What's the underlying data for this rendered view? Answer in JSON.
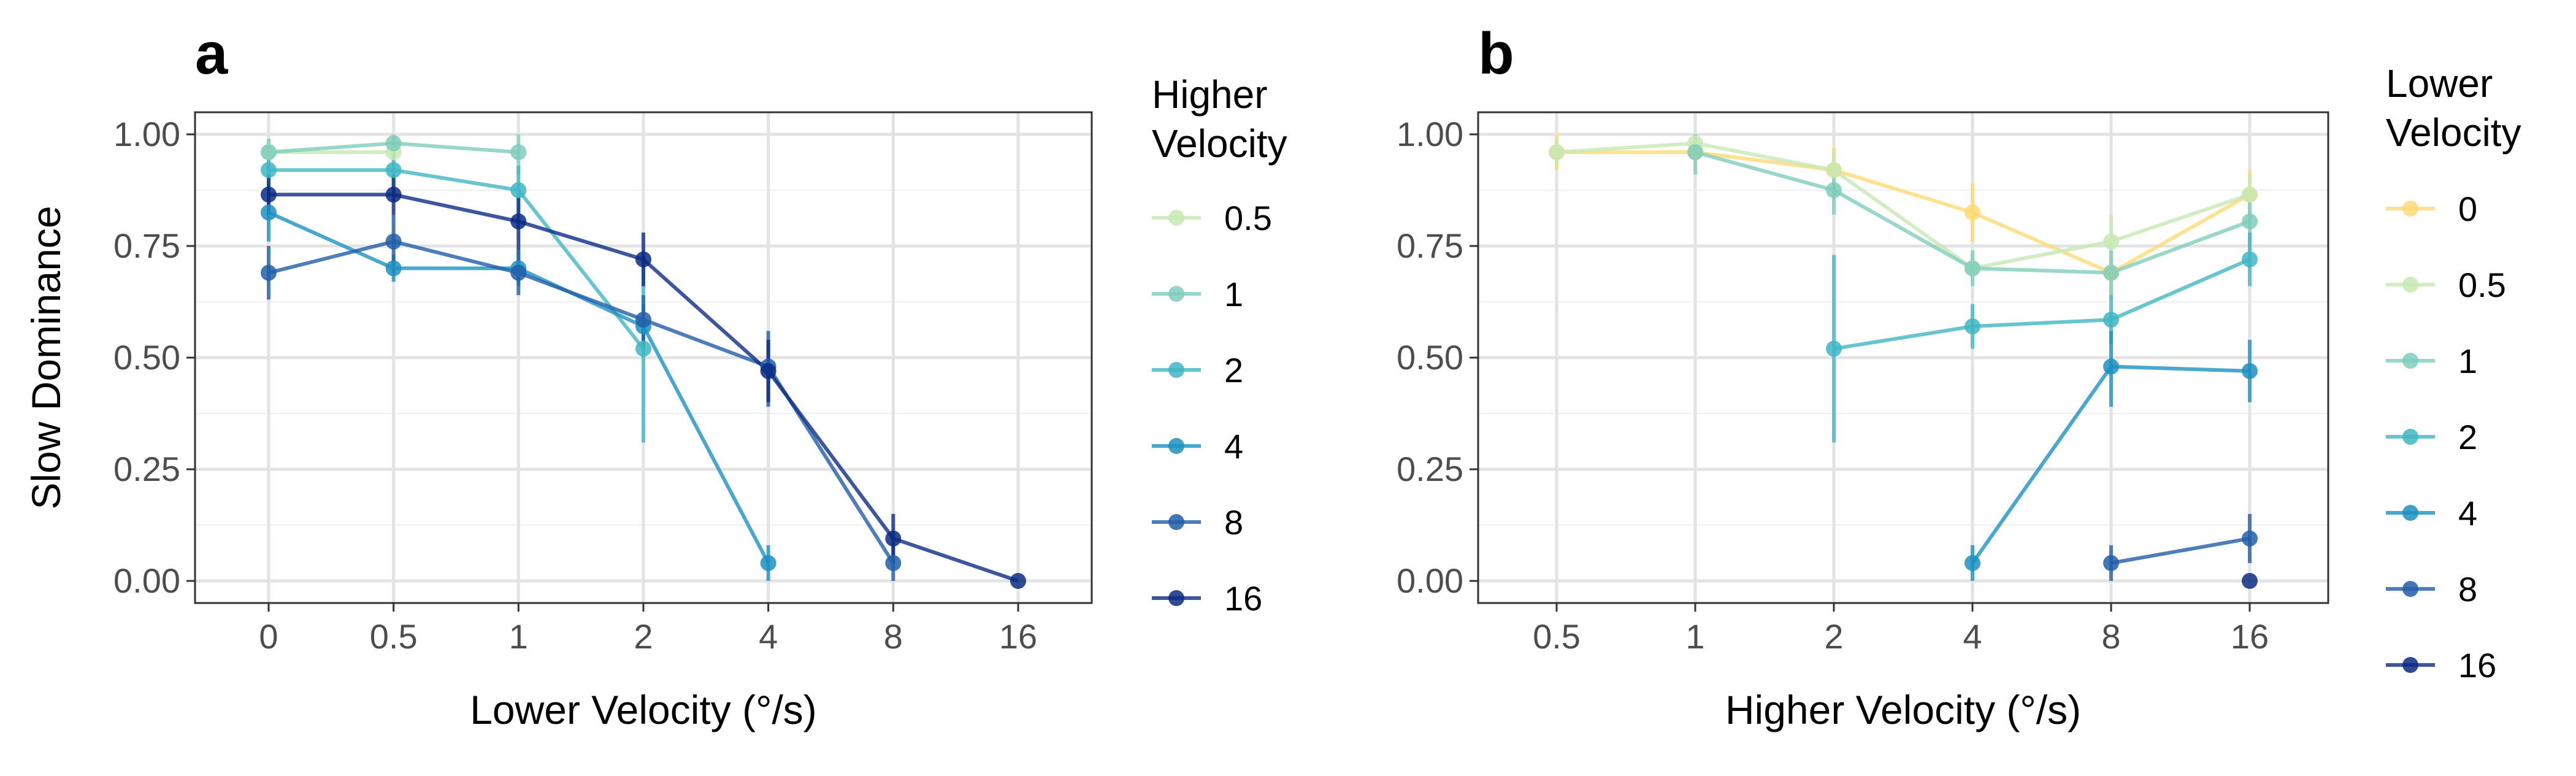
{
  "chart_data": [
    {
      "panel": "a",
      "type": "line",
      "xlabel": "Lower Velocity (°/s)",
      "ylabel": "Slow Dominance",
      "x_categories": [
        "0",
        "0.5",
        "1",
        "2",
        "4",
        "8",
        "16"
      ],
      "y_ticks": [
        "0.00",
        "0.25",
        "0.50",
        "0.75",
        "1.00"
      ],
      "ylim": [
        0,
        1
      ],
      "grid": true,
      "legend": {
        "title_lines": [
          "Higher",
          "Velocity"
        ],
        "placement": "right"
      },
      "series": [
        {
          "name": "0.5",
          "color": "#c7e9b4",
          "points": [
            {
              "x": "0",
              "y": 0.96,
              "lo": 0.93,
              "hi": 0.99
            },
            {
              "x": "0.5",
              "y": 0.96,
              "lo": 0.93,
              "hi": 0.99
            }
          ]
        },
        {
          "name": "1",
          "color": "#7fcdbb",
          "points": [
            {
              "x": "0",
              "y": 0.96,
              "lo": 0.92,
              "hi": 0.99
            },
            {
              "x": "0.5",
              "y": 0.98,
              "lo": 0.95,
              "hi": 1.0
            },
            {
              "x": "1",
              "y": 0.96,
              "lo": 0.91,
              "hi": 1.0
            }
          ]
        },
        {
          "name": "2",
          "color": "#41b6c4",
          "points": [
            {
              "x": "0",
              "y": 0.92,
              "lo": 0.87,
              "hi": 0.96
            },
            {
              "x": "0.5",
              "y": 0.92,
              "lo": 0.87,
              "hi": 0.96
            },
            {
              "x": "1",
              "y": 0.875,
              "lo": 0.82,
              "hi": 0.93
            },
            {
              "x": "2",
              "y": 0.52,
              "lo": 0.31,
              "hi": 0.73
            }
          ]
        },
        {
          "name": "4",
          "color": "#1d91c0",
          "points": [
            {
              "x": "0",
              "y": 0.825,
              "lo": 0.76,
              "hi": 0.89
            },
            {
              "x": "0.5",
              "y": 0.7,
              "lo": 0.67,
              "hi": 0.73
            },
            {
              "x": "1",
              "y": 0.7,
              "lo": 0.66,
              "hi": 0.74
            },
            {
              "x": "2",
              "y": 0.57,
              "lo": 0.52,
              "hi": 0.62
            },
            {
              "x": "4",
              "y": 0.04,
              "lo": 0.0,
              "hi": 0.08
            }
          ]
        },
        {
          "name": "8",
          "color": "#225ea8",
          "points": [
            {
              "x": "0",
              "y": 0.69,
              "lo": 0.63,
              "hi": 0.75
            },
            {
              "x": "0.5",
              "y": 0.76,
              "lo": 0.69,
              "hi": 0.82
            },
            {
              "x": "1",
              "y": 0.69,
              "lo": 0.64,
              "hi": 0.74
            },
            {
              "x": "2",
              "y": 0.585,
              "lo": 0.53,
              "hi": 0.64
            },
            {
              "x": "4",
              "y": 0.48,
              "lo": 0.39,
              "hi": 0.56
            },
            {
              "x": "8",
              "y": 0.04,
              "lo": 0.0,
              "hi": 0.08
            }
          ]
        },
        {
          "name": "16",
          "color": "#0c2c84",
          "points": [
            {
              "x": "0",
              "y": 0.865,
              "lo": 0.82,
              "hi": 0.91
            },
            {
              "x": "0.5",
              "y": 0.865,
              "lo": 0.82,
              "hi": 0.91
            },
            {
              "x": "1",
              "y": 0.805,
              "lo": 0.74,
              "hi": 0.86
            },
            {
              "x": "2",
              "y": 0.72,
              "lo": 0.66,
              "hi": 0.78
            },
            {
              "x": "4",
              "y": 0.47,
              "lo": 0.4,
              "hi": 0.54
            },
            {
              "x": "8",
              "y": 0.095,
              "lo": 0.04,
              "hi": 0.15
            },
            {
              "x": "16",
              "y": 0.0,
              "lo": 0.0,
              "hi": 0.0
            }
          ]
        }
      ]
    },
    {
      "panel": "b",
      "type": "line",
      "xlabel": "Higher Velocity (°/s)",
      "ylabel": "",
      "x_categories": [
        "0.5",
        "1",
        "2",
        "4",
        "8",
        "16"
      ],
      "y_ticks": [
        "0.00",
        "0.25",
        "0.50",
        "0.75",
        "1.00"
      ],
      "ylim": [
        0,
        1
      ],
      "grid": true,
      "legend": {
        "title_lines": [
          "Lower",
          "Velocity"
        ],
        "placement": "right"
      },
      "series": [
        {
          "name": "0",
          "color": "#fed976",
          "points": [
            {
              "x": "0.5",
              "y": 0.96,
              "lo": 0.92,
              "hi": 1.0
            },
            {
              "x": "1",
              "y": 0.96,
              "lo": 0.92,
              "hi": 0.99
            },
            {
              "x": "2",
              "y": 0.92,
              "lo": 0.86,
              "hi": 0.97
            },
            {
              "x": "4",
              "y": 0.825,
              "lo": 0.76,
              "hi": 0.89
            },
            {
              "x": "8",
              "y": 0.69,
              "lo": 0.63,
              "hi": 0.75
            },
            {
              "x": "16",
              "y": 0.865,
              "lo": 0.82,
              "hi": 0.92
            }
          ]
        },
        {
          "name": "0.5",
          "color": "#c7e9b4",
          "points": [
            {
              "x": "0.5",
              "y": 0.96,
              "lo": 0.93,
              "hi": 0.99
            },
            {
              "x": "1",
              "y": 0.98,
              "lo": 0.95,
              "hi": 1.0
            },
            {
              "x": "2",
              "y": 0.92,
              "lo": 0.87,
              "hi": 0.96
            },
            {
              "x": "4",
              "y": 0.7,
              "lo": 0.67,
              "hi": 0.73
            },
            {
              "x": "8",
              "y": 0.76,
              "lo": 0.69,
              "hi": 0.82
            },
            {
              "x": "16",
              "y": 0.865,
              "lo": 0.82,
              "hi": 0.91
            }
          ]
        },
        {
          "name": "1",
          "color": "#7fcdbb",
          "points": [
            {
              "x": "1",
              "y": 0.96,
              "lo": 0.91,
              "hi": 1.0
            },
            {
              "x": "2",
              "y": 0.875,
              "lo": 0.82,
              "hi": 0.93
            },
            {
              "x": "4",
              "y": 0.7,
              "lo": 0.66,
              "hi": 0.74
            },
            {
              "x": "8",
              "y": 0.69,
              "lo": 0.64,
              "hi": 0.74
            },
            {
              "x": "16",
              "y": 0.805,
              "lo": 0.74,
              "hi": 0.86
            }
          ]
        },
        {
          "name": "2",
          "color": "#41b6c4",
          "points": [
            {
              "x": "2",
              "y": 0.52,
              "lo": 0.31,
              "hi": 0.73
            },
            {
              "x": "4",
              "y": 0.57,
              "lo": 0.52,
              "hi": 0.62
            },
            {
              "x": "8",
              "y": 0.585,
              "lo": 0.53,
              "hi": 0.64
            },
            {
              "x": "16",
              "y": 0.72,
              "lo": 0.66,
              "hi": 0.78
            }
          ]
        },
        {
          "name": "4",
          "color": "#1d91c0",
          "points": [
            {
              "x": "4",
              "y": 0.04,
              "lo": 0.0,
              "hi": 0.08
            },
            {
              "x": "8",
              "y": 0.48,
              "lo": 0.39,
              "hi": 0.56
            },
            {
              "x": "16",
              "y": 0.47,
              "lo": 0.4,
              "hi": 0.54
            }
          ]
        },
        {
          "name": "8",
          "color": "#225ea8",
          "points": [
            {
              "x": "8",
              "y": 0.04,
              "lo": 0.0,
              "hi": 0.08
            },
            {
              "x": "16",
              "y": 0.095,
              "lo": 0.04,
              "hi": 0.15
            }
          ]
        },
        {
          "name": "16",
          "color": "#0c2c84",
          "points": [
            {
              "x": "16",
              "y": 0.0,
              "lo": 0.0,
              "hi": 0.0
            }
          ]
        }
      ]
    }
  ]
}
